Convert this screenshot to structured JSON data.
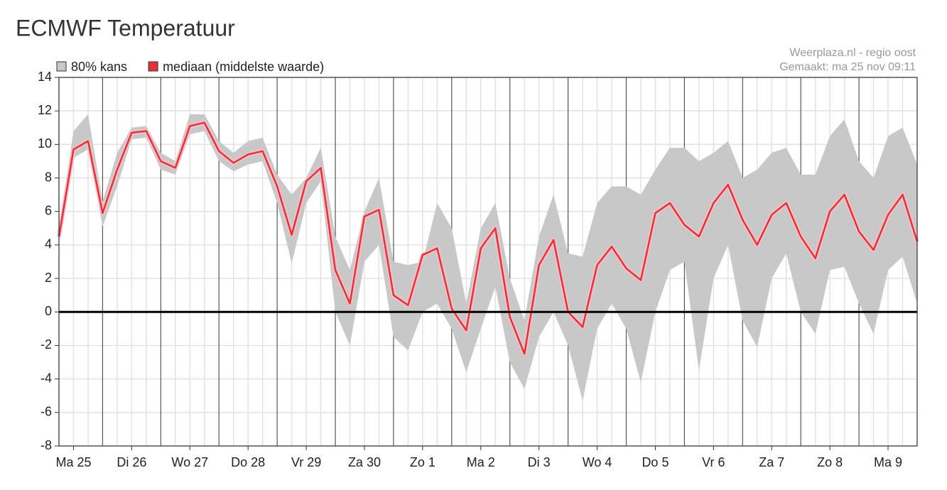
{
  "chart_data": {
    "type": "line",
    "title": "ECMWF Temperatuur",
    "source": "Weerplaza.nl - regio oost",
    "made": "Gemaakt: ma 25 nov 09:11",
    "x": [
      6,
      12,
      18,
      24,
      30,
      36,
      42,
      48,
      54,
      60,
      66,
      72,
      78,
      84,
      90,
      96,
      102,
      108,
      114,
      120,
      126,
      132,
      138,
      144,
      150,
      156,
      162,
      168,
      174,
      180,
      186,
      192,
      198,
      204,
      210,
      216,
      222,
      228,
      234,
      240,
      246,
      252,
      258,
      264,
      270,
      276,
      282,
      288,
      294,
      300,
      306,
      312,
      318,
      324,
      330,
      336,
      342,
      348,
      354,
      360
    ],
    "series": [
      {
        "name": "80% kans",
        "type": "band",
        "color": "#c8c8c8",
        "low": [
          4.2,
          9.2,
          9.7,
          5.1,
          7.5,
          10.3,
          10.4,
          8.5,
          8.2,
          10.6,
          10.8,
          9,
          8.4,
          8.8,
          9,
          6.5,
          2.9,
          6.5,
          7.8,
          0,
          -2,
          3,
          4,
          -1.5,
          -2.3,
          0,
          0.5,
          -1,
          -3.6,
          -1,
          1.5,
          -3,
          -4.6,
          -1.5,
          0,
          -2,
          -5.3,
          -1,
          0.5,
          -1,
          -4.2,
          0,
          2.5,
          3,
          -3.5,
          2,
          4,
          -0.5,
          -2.1,
          2,
          3.5,
          0,
          -1.3,
          2.5,
          2.7,
          0.5,
          -1.3,
          2.5,
          3.3,
          0.5
        ],
        "high": [
          5,
          10.8,
          11.8,
          6.6,
          9.5,
          11,
          11.1,
          9.5,
          9,
          11.8,
          11.8,
          10.2,
          9.5,
          10.2,
          10.4,
          8.2,
          7,
          8,
          9.8,
          4.5,
          2.5,
          6,
          8,
          3,
          2.8,
          3,
          6.5,
          5,
          0.5,
          5,
          6.5,
          2,
          -0.5,
          4.5,
          7,
          3.5,
          3.3,
          6.5,
          7.5,
          7.5,
          7,
          8.5,
          9.8,
          9.8,
          9,
          9.5,
          10.2,
          8,
          8.5,
          9.5,
          9.8,
          8.2,
          8.2,
          10.5,
          11.5,
          9,
          8,
          10.5,
          11,
          8.8
        ]
      },
      {
        "name": "mediaan (middelste waarde)",
        "type": "line",
        "color": "#e8303a",
        "values": [
          4.5,
          9.7,
          10.2,
          5.9,
          8.5,
          10.7,
          10.8,
          9,
          8.6,
          11.1,
          11.3,
          9.6,
          8.9,
          9.4,
          9.6,
          7.5,
          4.6,
          7.8,
          8.6,
          2.5,
          0.5,
          5.7,
          6.1,
          1,
          0.4,
          3.4,
          3.8,
          0.2,
          -1.1,
          3.8,
          5,
          -0.3,
          -2.5,
          2.8,
          4.3,
          0,
          -0.9,
          2.8,
          3.9,
          2.6,
          1.9,
          5.9,
          6.5,
          5.2,
          4.5,
          6.5,
          7.6,
          5.5,
          4,
          5.8,
          6.5,
          4.5,
          3.2,
          6,
          7,
          4.8,
          3.7,
          5.8,
          7,
          4.2
        ]
      }
    ],
    "xlim": [
      6,
      360
    ],
    "xticks": [
      {
        "value": 12,
        "label": "Ma 25"
      },
      {
        "value": 36,
        "label": "Di 26"
      },
      {
        "value": 60,
        "label": "Wo 27"
      },
      {
        "value": 84,
        "label": "Do 28"
      },
      {
        "value": 108,
        "label": "Vr 29"
      },
      {
        "value": 132,
        "label": "Za 30"
      },
      {
        "value": 156,
        "label": "Zo 1"
      },
      {
        "value": 180,
        "label": "Ma 2"
      },
      {
        "value": 204,
        "label": "Di 3"
      },
      {
        "value": 228,
        "label": "Wo 4"
      },
      {
        "value": 252,
        "label": "Do 5"
      },
      {
        "value": 276,
        "label": "Vr 6"
      },
      {
        "value": 300,
        "label": "Za 7"
      },
      {
        "value": 324,
        "label": "Zo 8"
      },
      {
        "value": 348,
        "label": "Ma 9"
      }
    ],
    "xgrid_major": [
      24,
      48,
      72,
      96,
      120,
      144,
      168,
      192,
      216,
      240,
      264,
      288,
      312,
      336
    ],
    "xgrid_minor": [
      6,
      12,
      18,
      30,
      36,
      42,
      54,
      60,
      66,
      78,
      84,
      90,
      102,
      108,
      114,
      126,
      132,
      138,
      150,
      156,
      162,
      174,
      180,
      186,
      198,
      204,
      210,
      222,
      228,
      234,
      246,
      252,
      258,
      270,
      276,
      282,
      294,
      300,
      306,
      318,
      324,
      330,
      342,
      348,
      354
    ],
    "ylim": [
      -8,
      14
    ],
    "yticks": [
      -8,
      -6,
      -4,
      -2,
      0,
      2,
      4,
      6,
      8,
      10,
      12,
      14
    ],
    "grid": true,
    "zero_line": 0
  }
}
